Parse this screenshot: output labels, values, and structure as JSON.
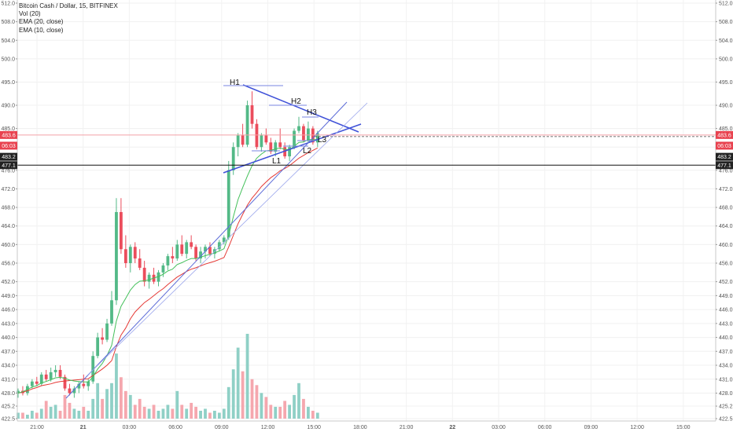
{
  "legend": {
    "title": "Bitcoin Cash / Dollar, 15, BITFINEX",
    "vol": "Vol (20)",
    "ema20": "EMA (20, close)",
    "ema10": "EMA (10, close)"
  },
  "colors": {
    "up": "#53b987",
    "down": "#eb4d5c",
    "up_vol": "#8fd0c6",
    "down_vol": "#f5a7ae",
    "ema20": "#e53935",
    "ema10": "#43c05a",
    "trend": "#3f51d8",
    "price_line": "#f3a1a6",
    "badge_red": "#e8424f",
    "badge_black": "#222222"
  },
  "chart_data": {
    "type": "candlestick",
    "title": "Bitcoin Cash / Dollar, 15, BITFINEX",
    "ylim": [
      422.5,
      512.0
    ],
    "y_ticks": [
      "512.0",
      "508.0",
      "504.0",
      "500.0",
      "495.0",
      "490.0",
      "485.0",
      "481.0",
      "476.0",
      "472.0",
      "468.0",
      "464.0",
      "460.0",
      "456.0",
      "452.0",
      "449.0",
      "446.0",
      "443.0",
      "440.0",
      "437.0",
      "434.0",
      "431.0",
      "428.0",
      "425.2",
      "422.5"
    ],
    "x_ticks": [
      "21:00",
      "21",
      "03:00",
      "06:00",
      "09:00",
      "12:00",
      "15:00",
      "18:00",
      "21:00",
      "22",
      "03:00",
      "06:00",
      "09:00",
      "12:00",
      "15:00"
    ],
    "candles": [
      [
        428.0,
        429.0,
        427.0,
        428.5
      ],
      [
        428.5,
        429.5,
        427.5,
        428.0
      ],
      [
        428.0,
        430.0,
        427.5,
        429.5
      ],
      [
        429.5,
        431.0,
        429.0,
        430.5
      ],
      [
        430.5,
        431.5,
        429.5,
        430.0
      ],
      [
        430.0,
        432.5,
        429.5,
        432.0
      ],
      [
        432.0,
        433.0,
        430.5,
        431.0
      ],
      [
        431.0,
        433.5,
        430.5,
        432.5
      ],
      [
        432.5,
        434.0,
        431.5,
        433.0
      ],
      [
        433.0,
        434.0,
        431.0,
        431.5
      ],
      [
        431.5,
        432.0,
        428.5,
        429.0
      ],
      [
        429.0,
        430.0,
        427.5,
        428.0
      ],
      [
        428.0,
        429.5,
        427.0,
        429.0
      ],
      [
        429.0,
        430.5,
        428.0,
        430.0
      ],
      [
        430.0,
        432.0,
        429.0,
        429.5
      ],
      [
        429.5,
        431.0,
        428.5,
        430.5
      ],
      [
        430.5,
        437.0,
        430.0,
        436.0
      ],
      [
        436.0,
        441.0,
        435.5,
        440.0
      ],
      [
        440.0,
        442.0,
        438.5,
        439.5
      ],
      [
        439.5,
        444.0,
        439.0,
        443.0
      ],
      [
        443.0,
        450.0,
        442.5,
        448.0
      ],
      [
        448.0,
        470.0,
        447.0,
        467.0
      ],
      [
        467.0,
        470.0,
        458.0,
        459.0
      ],
      [
        459.0,
        462.0,
        455.0,
        456.0
      ],
      [
        456.0,
        460.0,
        454.0,
        459.5
      ],
      [
        459.5,
        460.5,
        456.0,
        457.0
      ],
      [
        457.0,
        459.0,
        454.5,
        455.0
      ],
      [
        455.0,
        456.5,
        451.0,
        452.0
      ],
      [
        452.0,
        454.0,
        450.5,
        453.5
      ],
      [
        453.5,
        455.0,
        451.5,
        452.0
      ],
      [
        452.0,
        454.5,
        451.0,
        454.0
      ],
      [
        454.0,
        456.0,
        453.0,
        455.5
      ],
      [
        455.5,
        458.0,
        454.5,
        457.5
      ],
      [
        457.5,
        459.5,
        456.0,
        457.0
      ],
      [
        457.0,
        461.0,
        456.5,
        460.0
      ],
      [
        460.0,
        462.0,
        457.5,
        458.0
      ],
      [
        458.0,
        461.0,
        457.0,
        460.5
      ],
      [
        460.5,
        462.0,
        459.0,
        459.5
      ],
      [
        459.5,
        460.0,
        456.5,
        457.0
      ],
      [
        457.0,
        459.5,
        456.0,
        458.5
      ],
      [
        458.5,
        460.0,
        457.0,
        459.5
      ],
      [
        459.5,
        460.5,
        457.5,
        458.0
      ],
      [
        458.0,
        459.5,
        457.0,
        459.0
      ],
      [
        459.0,
        461.0,
        458.5,
        460.5
      ],
      [
        460.5,
        462.0,
        460.0,
        461.5
      ],
      [
        461.5,
        478.0,
        461.0,
        476.0
      ],
      [
        476.0,
        482.0,
        475.0,
        481.0
      ],
      [
        481.0,
        484.0,
        479.0,
        483.5
      ],
      [
        483.5,
        486.0,
        481.0,
        481.5
      ],
      [
        481.5,
        491.0,
        481.0,
        490.0
      ],
      [
        490.0,
        493.0,
        485.0,
        486.0
      ],
      [
        486.0,
        487.0,
        480.5,
        481.0
      ],
      [
        481.0,
        484.0,
        480.0,
        483.5
      ],
      [
        483.5,
        485.0,
        481.5,
        482.0
      ],
      [
        482.0,
        483.0,
        479.5,
        480.0
      ],
      [
        480.0,
        482.5,
        479.0,
        482.0
      ],
      [
        482.0,
        485.0,
        480.5,
        481.0
      ],
      [
        481.0,
        482.0,
        478.5,
        479.0
      ],
      [
        479.0,
        481.5,
        478.0,
        481.0
      ],
      [
        481.0,
        485.0,
        480.5,
        484.5
      ],
      [
        484.5,
        487.5,
        484.0,
        485.5
      ],
      [
        485.5,
        486.0,
        482.0,
        482.5
      ],
      [
        482.5,
        486.5,
        482.0,
        485.0
      ],
      [
        485.0,
        485.5,
        481.5,
        482.0
      ],
      [
        482.0,
        484.5,
        481.0,
        484.0
      ]
    ],
    "volumes": [
      3,
      3,
      2,
      4,
      3,
      5,
      9,
      6,
      7,
      4,
      12,
      8,
      5,
      4,
      6,
      4,
      10,
      18,
      10,
      15,
      18,
      33,
      21,
      14,
      12,
      7,
      10,
      6,
      5,
      7,
      4,
      5,
      7,
      5,
      14,
      7,
      5,
      8,
      6,
      4,
      5,
      3,
      4,
      3,
      5,
      16,
      25,
      36,
      24,
      43,
      20,
      17,
      13,
      11,
      7,
      6,
      6,
      9,
      7,
      12,
      18,
      10,
      6,
      4,
      3
    ],
    "ema20": [
      428.0,
      428.2,
      428.5,
      428.9,
      429.2,
      429.6,
      429.8,
      430.0,
      430.3,
      430.5,
      430.6,
      430.7,
      430.8,
      430.9,
      431.0,
      431.1,
      431.8,
      432.5,
      433.2,
      434.0,
      435.0,
      438.0,
      440.5,
      442.0,
      444.0,
      445.5,
      446.5,
      447.5,
      448.2,
      449.0,
      449.8,
      450.5,
      451.4,
      452.2,
      453.0,
      453.6,
      454.2,
      454.7,
      455.0,
      455.4,
      455.8,
      456.1,
      456.4,
      456.8,
      457.2,
      459.5,
      462.0,
      464.5,
      466.5,
      468.5,
      470.0,
      471.2,
      472.5,
      473.5,
      474.4,
      475.1,
      475.9,
      476.4,
      477.0,
      477.8,
      478.6,
      479.2,
      479.8,
      480.3,
      480.8
    ],
    "ema10": [
      428.0,
      428.3,
      428.8,
      429.3,
      429.6,
      430.2,
      430.5,
      430.9,
      431.3,
      431.4,
      431.2,
      430.8,
      430.6,
      430.5,
      430.4,
      430.4,
      431.5,
      433.2,
      434.4,
      436.1,
      438.3,
      443.5,
      446.7,
      448.4,
      450.2,
      451.4,
      452.1,
      452.2,
      452.4,
      452.8,
      453.1,
      453.6,
      454.3,
      454.7,
      455.7,
      456.1,
      456.6,
      457.0,
      457.0,
      457.3,
      457.6,
      457.9,
      458.2,
      458.6,
      459.1,
      462.0,
      466.0,
      469.7,
      472.3,
      474.8,
      477.0,
      478.6,
      479.5,
      480.2,
      480.3,
      480.6,
      480.8,
      480.5,
      480.4,
      481.2,
      482.0,
      482.1,
      482.6,
      482.6,
      482.6
    ],
    "horizontal_lines": [
      {
        "price": 483.6,
        "label": "483.6",
        "style": "price"
      },
      {
        "price": 477.1,
        "label": "477.1",
        "style": "black"
      }
    ],
    "price_badges": [
      {
        "label": "483.6",
        "price": 483.6,
        "color": "red"
      },
      {
        "label": "06:03",
        "price": 481.3,
        "color": "red"
      },
      {
        "label": "483.2",
        "price": 478.9,
        "color": "black"
      },
      {
        "label": "477.1",
        "price": 477.1,
        "color": "black"
      }
    ],
    "annotations": [
      "H1",
      "H2",
      "H3",
      "L1",
      "L2",
      "L3"
    ]
  }
}
